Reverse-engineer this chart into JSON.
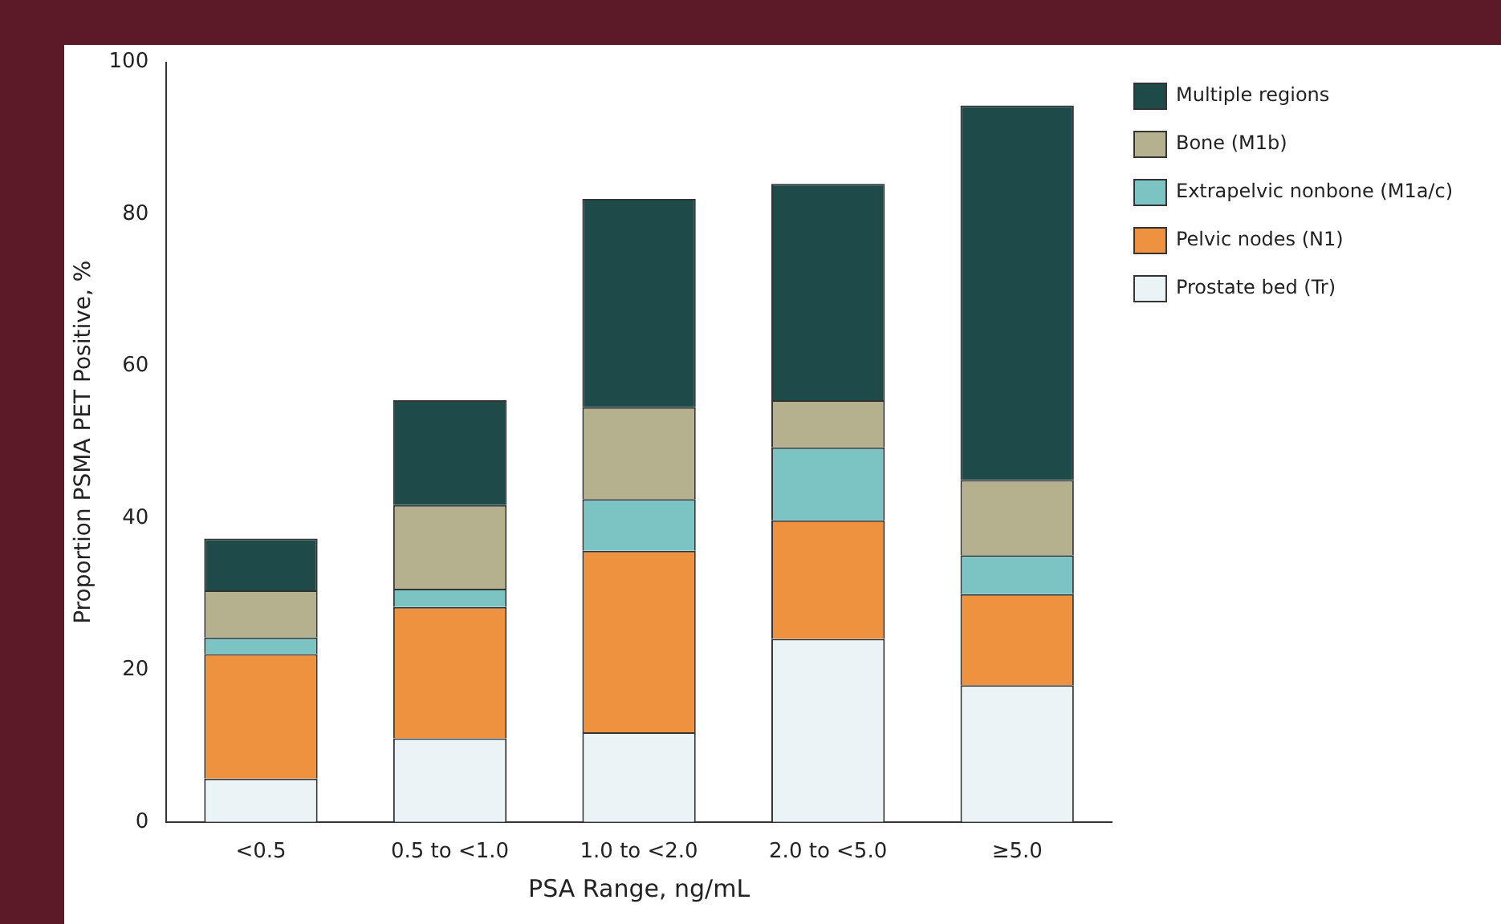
{
  "chart_data": {
    "type": "bar",
    "stacked": true,
    "xlabel": "PSA Range, ng/mL",
    "ylabel": "Proportion PSMA PET Positive, %",
    "categories": [
      "<0.5",
      "0.5 to <1.0",
      "1.0 to <2.0",
      "2.0 to <5.0",
      "≥5.0"
    ],
    "series": [
      {
        "name": "Prostate bed (Tr)",
        "color": "#eaf3f5",
        "values": [
          5.7,
          11.0,
          11.8,
          24.1,
          18.0
        ]
      },
      {
        "name": "Pelvic nodes (N1)",
        "color": "#ee9240",
        "values": [
          16.4,
          17.3,
          23.9,
          15.6,
          12.0
        ]
      },
      {
        "name": "Extrapelvic nonbone (M1a/c)",
        "color": "#7cc4c4",
        "values": [
          2.2,
          2.4,
          6.8,
          9.6,
          5.1
        ]
      },
      {
        "name": "Bone (M1b)",
        "color": "#b5b08e",
        "values": [
          6.2,
          11.0,
          12.1,
          6.2,
          9.9
        ]
      },
      {
        "name": "Multiple regions",
        "color": "#1f4a4a",
        "values": [
          6.8,
          13.8,
          27.4,
          28.5,
          49.3
        ]
      }
    ],
    "ylim": [
      0,
      100
    ],
    "yticks": [
      0,
      20,
      40,
      60,
      80,
      100
    ],
    "grid": false,
    "legend": "top right"
  }
}
